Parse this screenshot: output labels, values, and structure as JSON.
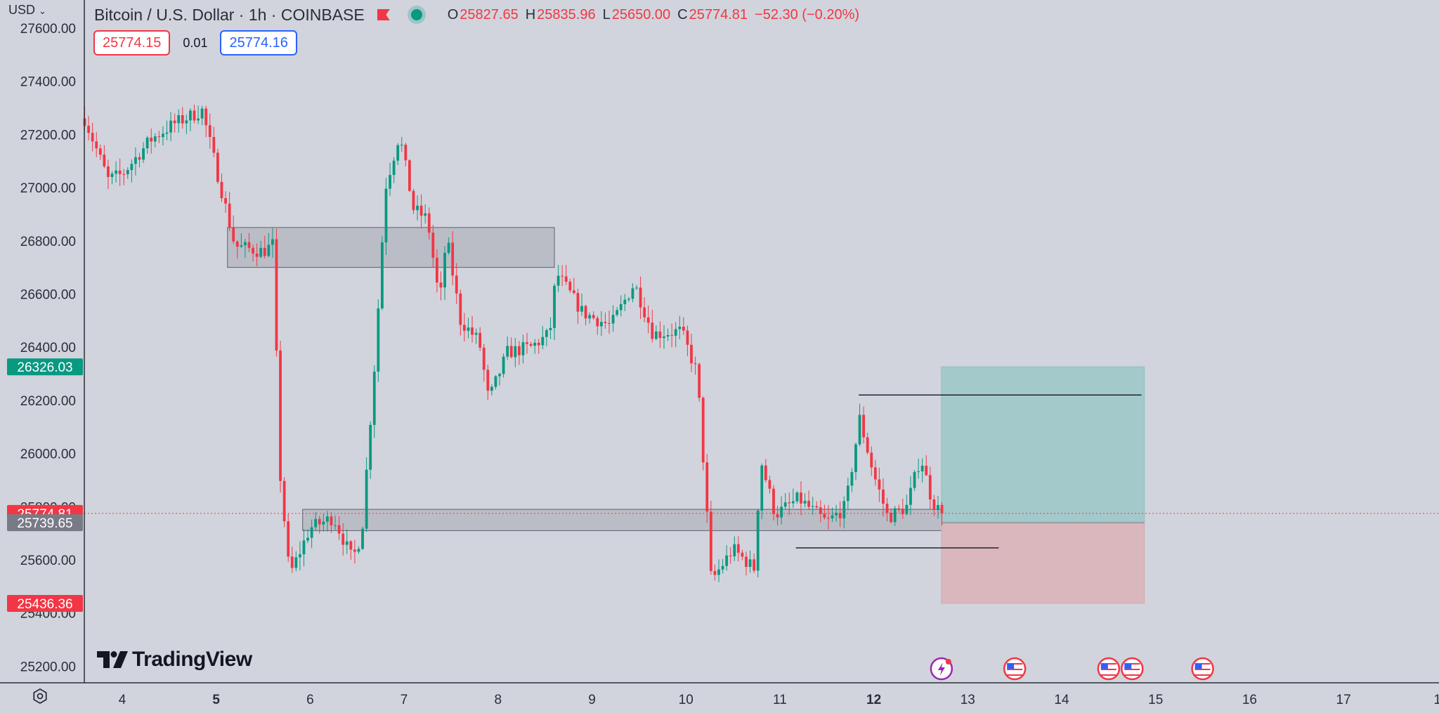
{
  "header": {
    "symbol": "Bitcoin / U.S. Dollar · 1h · COINBASE",
    "ohlc": [
      {
        "key": "O",
        "value": "25827.65"
      },
      {
        "key": "H",
        "value": "25835.96"
      },
      {
        "key": "L",
        "value": "25650.00"
      },
      {
        "key": "C",
        "value": "25774.81"
      }
    ],
    "change": "−52.30 (−0.20%)"
  },
  "quote": {
    "sell": "25774.15",
    "spread": "0.01",
    "buy": "25774.16"
  },
  "currency_label": "USD",
  "brand": "TradingView",
  "colors": {
    "up": "#089981",
    "down": "#f23645",
    "background": "#d1d4dc",
    "zone_fill": "#b7b9c2",
    "profit_fill": "#a3c9ca",
    "loss_fill": "#d9b7bd"
  },
  "chart_data": {
    "type": "candlestick",
    "title": "Bitcoin / U.S. Dollar · 1h · COINBASE",
    "y_ticks": [
      "27600.00",
      "27400.00",
      "27200.00",
      "27000.00",
      "26800.00",
      "26600.00",
      "26400.00",
      "26200.00",
      "26000.00",
      "25800.00",
      "25600.00",
      "25400.00",
      "25200.00"
    ],
    "x_ticks": [
      {
        "label": "4",
        "bold": false
      },
      {
        "label": "5",
        "bold": true
      },
      {
        "label": "6",
        "bold": false
      },
      {
        "label": "7",
        "bold": false
      },
      {
        "label": "8",
        "bold": false
      },
      {
        "label": "9",
        "bold": false
      },
      {
        "label": "10",
        "bold": false
      },
      {
        "label": "11",
        "bold": false
      },
      {
        "label": "12",
        "bold": true
      },
      {
        "label": "13",
        "bold": false
      },
      {
        "label": "14",
        "bold": false
      },
      {
        "label": "15",
        "bold": false
      },
      {
        "label": "16",
        "bold": false
      },
      {
        "label": "17",
        "bold": false
      },
      {
        "label": "1",
        "bold": false
      }
    ],
    "x_range_days": [
      3.6,
      18.0
    ],
    "y_range": [
      25125,
      27650
    ],
    "price_badges": [
      {
        "label": "26326.03",
        "value": 26326.03,
        "color": "#089981"
      },
      {
        "label": "25774.81",
        "value": 25774.81,
        "color": "#f23645"
      },
      {
        "label": "25739.65",
        "value": 25739.65,
        "color": "#787b86"
      },
      {
        "label": "25436.36",
        "value": 25436.36,
        "color": "#f23645"
      }
    ],
    "last_price": 25774.81,
    "anchors": [
      {
        "day": 3.6,
        "price": 27260
      },
      {
        "day": 3.85,
        "price": 27030
      },
      {
        "day": 4.0,
        "price": 27050
      },
      {
        "day": 4.3,
        "price": 27180
      },
      {
        "day": 4.55,
        "price": 27240
      },
      {
        "day": 4.85,
        "price": 27290
      },
      {
        "day": 5.05,
        "price": 27000
      },
      {
        "day": 5.2,
        "price": 26780
      },
      {
        "day": 5.5,
        "price": 26760
      },
      {
        "day": 5.62,
        "price": 26790
      },
      {
        "day": 5.66,
        "price": 26000
      },
      {
        "day": 5.78,
        "price": 25540
      },
      {
        "day": 6.0,
        "price": 25720
      },
      {
        "day": 6.25,
        "price": 25760
      },
      {
        "day": 6.45,
        "price": 25600
      },
      {
        "day": 6.55,
        "price": 25700
      },
      {
        "day": 6.7,
        "price": 26400
      },
      {
        "day": 6.8,
        "price": 27000
      },
      {
        "day": 6.95,
        "price": 27200
      },
      {
        "day": 7.1,
        "price": 26920
      },
      {
        "day": 7.25,
        "price": 26880
      },
      {
        "day": 7.38,
        "price": 26560
      },
      {
        "day": 7.45,
        "price": 26820
      },
      {
        "day": 7.6,
        "price": 26500
      },
      {
        "day": 7.8,
        "price": 26420
      },
      {
        "day": 7.9,
        "price": 26200
      },
      {
        "day": 8.1,
        "price": 26380
      },
      {
        "day": 8.35,
        "price": 26400
      },
      {
        "day": 8.55,
        "price": 26450
      },
      {
        "day": 8.62,
        "price": 26680
      },
      {
        "day": 8.9,
        "price": 26530
      },
      {
        "day": 9.2,
        "price": 26480
      },
      {
        "day": 9.45,
        "price": 26640
      },
      {
        "day": 9.65,
        "price": 26450
      },
      {
        "day": 9.95,
        "price": 26460
      },
      {
        "day": 10.12,
        "price": 26300
      },
      {
        "day": 10.2,
        "price": 25900
      },
      {
        "day": 10.27,
        "price": 25520
      },
      {
        "day": 10.5,
        "price": 25640
      },
      {
        "day": 10.75,
        "price": 25560
      },
      {
        "day": 10.78,
        "price": 26000
      },
      {
        "day": 10.95,
        "price": 25770
      },
      {
        "day": 11.2,
        "price": 25830
      },
      {
        "day": 11.5,
        "price": 25740
      },
      {
        "day": 11.7,
        "price": 25800
      },
      {
        "day": 11.85,
        "price": 26130
      },
      {
        "day": 12.0,
        "price": 25920
      },
      {
        "day": 12.15,
        "price": 25760
      },
      {
        "day": 12.35,
        "price": 25800
      },
      {
        "day": 12.5,
        "price": 25990
      },
      {
        "day": 12.62,
        "price": 25820
      },
      {
        "day": 12.72,
        "price": 25775
      }
    ],
    "zones": [
      {
        "day_start": 5.12,
        "day_end": 8.6,
        "price_top": 26850,
        "price_bottom": 26700
      },
      {
        "day_start": 5.92,
        "day_end": 13.38,
        "price_top": 25790,
        "price_bottom": 25710
      }
    ],
    "levels": [
      {
        "day_start": 11.84,
        "day_end": 14.85,
        "price": 26220
      },
      {
        "day_start": 11.17,
        "day_end": 13.33,
        "price": 25645
      }
    ],
    "position": {
      "day_start": 12.72,
      "day_end": 14.88,
      "entry": 25739.65,
      "target": 26326.03,
      "stop": 25436.36
    },
    "event_markers": [
      {
        "day": 12.72,
        "kind": "bolt"
      },
      {
        "day": 13.5,
        "kind": "us-flag"
      },
      {
        "day": 14.5,
        "kind": "us-flag"
      },
      {
        "day": 14.75,
        "kind": "us-flag"
      },
      {
        "day": 15.5,
        "kind": "us-flag"
      }
    ]
  }
}
